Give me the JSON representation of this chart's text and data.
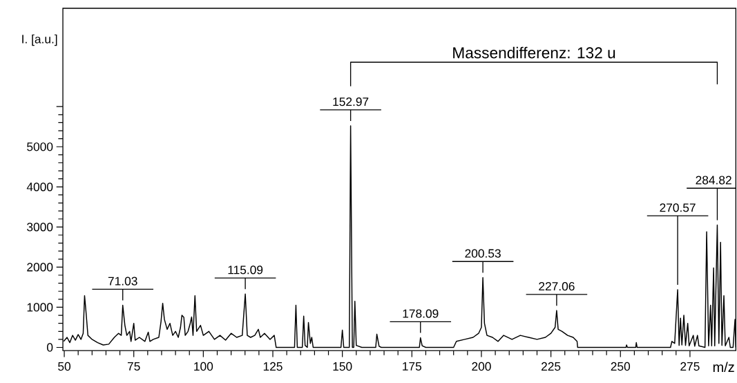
{
  "chart_data": {
    "type": "line",
    "xlabel": "m/z",
    "ylabel": "I. [a.u.]",
    "xlim": [
      49.5,
      291.5
    ],
    "xticks": [
      50,
      75,
      100,
      125,
      150,
      175,
      200,
      225,
      250,
      275
    ],
    "ylim": [
      -80,
      8450
    ],
    "yticks": [
      0,
      1000,
      2000,
      3000,
      4000,
      5000,
      {
        "value": 6000,
        "label": null
      }
    ],
    "series": [
      {
        "color": "#000000",
        "x": [
          49.8,
          51,
          52,
          53,
          54,
          55,
          56,
          56.8,
          57.3,
          57.8,
          58.5,
          60,
          62,
          64,
          66,
          68,
          69.5,
          70.5,
          71.03,
          71.8,
          72.5,
          73.5,
          74,
          75,
          75.5,
          77,
          79,
          80.2,
          80.8,
          82,
          84,
          84.8,
          85.4,
          86,
          87,
          88,
          89,
          90,
          91,
          91.8,
          92.3,
          93,
          93.5,
          94.5,
          95.3,
          95.8,
          96.3,
          97,
          97.6,
          99,
          100,
          102,
          104,
          106,
          108,
          110,
          112,
          114,
          115.09,
          115.8,
          117,
          118.5,
          119.8,
          120.5,
          122,
          124,
          125.5,
          126.2,
          132.8,
          133.3,
          133.8,
          135.6,
          136.1,
          136.6,
          137.4,
          137.8,
          138.5,
          139,
          139.5,
          149.5,
          150,
          150.5,
          152.5,
          152.97,
          153.6,
          154.1,
          154.5,
          155,
          157,
          162,
          162.4,
          163.2,
          164,
          177.7,
          178.09,
          178.7,
          180,
          190,
          191,
          194,
          197,
          199,
          200,
          200.53,
          201.1,
          202,
          204,
          206,
          208,
          211,
          214,
          217,
          220,
          223,
          225,
          226.5,
          227.06,
          227.6,
          229,
          231,
          233,
          234.4,
          234.6,
          252,
          252.2,
          252.5,
          255.5,
          255.7,
          256,
          268,
          268.5,
          269.5,
          270.57,
          271.1,
          271.6,
          272.1,
          272.8,
          273.4,
          274.2,
          274.7,
          276.2,
          276.7,
          277.7,
          278.2,
          280.4,
          281,
          281.7,
          282.4,
          282.8,
          283.5,
          283.9,
          284.82,
          285.4,
          286,
          286.5,
          287.2,
          287.7,
          289,
          289.5,
          290.5,
          291.2,
          291.5
        ],
        "values": [
          150,
          250,
          120,
          300,
          180,
          320,
          200,
          350,
          1290,
          900,
          300,
          200,
          120,
          60,
          80,
          250,
          350,
          300,
          1050,
          550,
          300,
          400,
          150,
          600,
          180,
          250,
          150,
          380,
          150,
          200,
          250,
          650,
          1100,
          700,
          450,
          600,
          300,
          400,
          250,
          500,
          800,
          750,
          300,
          400,
          600,
          760,
          300,
          1290,
          400,
          550,
          300,
          400,
          200,
          300,
          180,
          350,
          250,
          300,
          1330,
          300,
          250,
          300,
          450,
          250,
          350,
          200,
          300,
          0,
          0,
          1050,
          0,
          0,
          780,
          50,
          0,
          620,
          100,
          250,
          0,
          0,
          430,
          0,
          0,
          5520,
          0,
          0,
          1150,
          50,
          0,
          0,
          330,
          30,
          0,
          0,
          240,
          40,
          0,
          0,
          150,
          200,
          250,
          350,
          500,
          1740,
          600,
          300,
          250,
          150,
          300,
          200,
          300,
          250,
          200,
          250,
          350,
          500,
          920,
          450,
          400,
          300,
          250,
          150,
          0,
          0,
          60,
          0,
          0,
          120,
          0,
          0,
          150,
          100,
          1440,
          50,
          730,
          60,
          800,
          50,
          600,
          40,
          300,
          30,
          300,
          40,
          0,
          2880,
          40,
          1050,
          40,
          1980,
          40,
          3050,
          100,
          2620,
          50,
          1290,
          40,
          250,
          0,
          0,
          700,
          0
        ]
      }
    ],
    "annotations": [
      "Massendifferenz: 132 u",
      {
        "text": "71.03",
        "x": 71.03,
        "y": 1050
      },
      {
        "text": "115.09",
        "x": 115.09,
        "y": 1330
      },
      {
        "text": "152.97",
        "x": 152.97,
        "y": 5520
      },
      {
        "text": "178.09",
        "x": 178.09,
        "y": 240
      },
      {
        "text": "200.53",
        "x": 200.53,
        "y": 1740
      },
      {
        "text": "227.06",
        "x": 227.06,
        "y": 920
      },
      {
        "text": "270.57",
        "x": 270.57,
        "y": 1440
      },
      {
        "text": "284.82",
        "x": 284.82,
        "y": 3050
      }
    ]
  }
}
